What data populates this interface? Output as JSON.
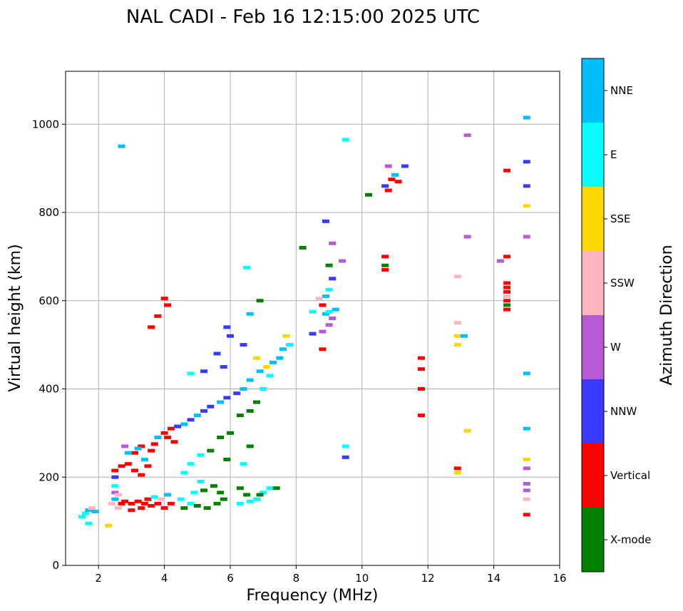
{
  "chart_data": {
    "type": "scatter",
    "title": "NAL CADI - Feb 16 12:15:00 2025 UTC",
    "xlabel": "Frequency (MHz)",
    "ylabel": "Virtual height (km)",
    "xlim": [
      1,
      16
    ],
    "ylim": [
      0,
      1120
    ],
    "xticks": [
      2,
      4,
      6,
      8,
      10,
      12,
      14,
      16
    ],
    "yticks": [
      0,
      200,
      400,
      600,
      800,
      1000
    ],
    "grid": true,
    "colorbar": {
      "label": "Azimuth Direction",
      "categories": [
        {
          "name": "X-mode",
          "color": "#008000"
        },
        {
          "name": "Vertical",
          "color": "#ff0000"
        },
        {
          "name": "NNW",
          "color": "#3a3aff"
        },
        {
          "name": "W",
          "color": "#b65ad6"
        },
        {
          "name": "SSW",
          "color": "#ffb6c1"
        },
        {
          "name": "SSE",
          "color": "#ffd700"
        },
        {
          "name": "E",
          "color": "#00ffff"
        },
        {
          "name": "NNE",
          "color": "#00bfff"
        }
      ]
    },
    "points": [
      [
        1.6,
        118,
        "E"
      ],
      [
        1.7,
        125,
        "NNE"
      ],
      [
        1.8,
        130,
        "SSW"
      ],
      [
        1.9,
        122,
        "NNE"
      ],
      [
        1.5,
        110,
        "E"
      ],
      [
        1.7,
        95,
        "E"
      ],
      [
        2.3,
        90,
        "SSE"
      ],
      [
        2.4,
        140,
        "SSW"
      ],
      [
        2.5,
        150,
        "NNE"
      ],
      [
        2.5,
        165,
        "W"
      ],
      [
        2.6,
        130,
        "SSW"
      ],
      [
        2.5,
        180,
        "E"
      ],
      [
        2.6,
        160,
        "SSW"
      ],
      [
        2.5,
        200,
        "NNW"
      ],
      [
        2.7,
        140,
        "Vertical"
      ],
      [
        2.8,
        145,
        "Vertical"
      ],
      [
        3.0,
        140,
        "Vertical"
      ],
      [
        3.2,
        145,
        "Vertical"
      ],
      [
        3.4,
        140,
        "Vertical"
      ],
      [
        3.5,
        150,
        "Vertical"
      ],
      [
        3.6,
        135,
        "Vertical"
      ],
      [
        3.8,
        140,
        "Vertical"
      ],
      [
        4.0,
        130,
        "Vertical"
      ],
      [
        4.2,
        140,
        "Vertical"
      ],
      [
        3.0,
        125,
        "Vertical"
      ],
      [
        3.3,
        130,
        "Vertical"
      ],
      [
        3.9,
        150,
        "SSW"
      ],
      [
        4.1,
        160,
        "NNE"
      ],
      [
        3.7,
        155,
        "E"
      ],
      [
        4.5,
        150,
        "E"
      ],
      [
        4.8,
        140,
        "E"
      ],
      [
        5.0,
        135,
        "X-mode"
      ],
      [
        5.3,
        130,
        "X-mode"
      ],
      [
        5.6,
        140,
        "X-mode"
      ],
      [
        5.8,
        150,
        "X-mode"
      ],
      [
        4.6,
        130,
        "X-mode"
      ],
      [
        5.2,
        170,
        "X-mode"
      ],
      [
        5.5,
        180,
        "X-mode"
      ],
      [
        5.1,
        190,
        "E"
      ],
      [
        4.9,
        165,
        "E"
      ],
      [
        5.7,
        165,
        "X-mode"
      ],
      [
        6.3,
        140,
        "E"
      ],
      [
        6.6,
        145,
        "E"
      ],
      [
        6.8,
        150,
        "E"
      ],
      [
        7.0,
        165,
        "E"
      ],
      [
        7.2,
        175,
        "E"
      ],
      [
        6.5,
        160,
        "X-mode"
      ],
      [
        6.9,
        160,
        "X-mode"
      ],
      [
        7.4,
        175,
        "X-mode"
      ],
      [
        6.3,
        175,
        "X-mode"
      ],
      [
        2.5,
        215,
        "Vertical"
      ],
      [
        2.7,
        225,
        "Vertical"
      ],
      [
        2.9,
        230,
        "Vertical"
      ],
      [
        3.1,
        215,
        "Vertical"
      ],
      [
        3.3,
        205,
        "Vertical"
      ],
      [
        3.5,
        225,
        "Vertical"
      ],
      [
        3.1,
        255,
        "Vertical"
      ],
      [
        3.3,
        270,
        "Vertical"
      ],
      [
        3.7,
        275,
        "Vertical"
      ],
      [
        3.6,
        260,
        "Vertical"
      ],
      [
        2.9,
        255,
        "NNE"
      ],
      [
        3.2,
        265,
        "NNE"
      ],
      [
        2.8,
        270,
        "W"
      ],
      [
        3.4,
        240,
        "NNE"
      ],
      [
        3.8,
        290,
        "NNE"
      ],
      [
        4.0,
        300,
        "Vertical"
      ],
      [
        4.2,
        310,
        "Vertical"
      ],
      [
        4.4,
        315,
        "NNW"
      ],
      [
        4.6,
        320,
        "NNE"
      ],
      [
        4.8,
        330,
        "NNW"
      ],
      [
        5.0,
        340,
        "NNE"
      ],
      [
        5.2,
        350,
        "NNW"
      ],
      [
        5.4,
        360,
        "NNW"
      ],
      [
        5.7,
        370,
        "NNE"
      ],
      [
        5.9,
        380,
        "NNW"
      ],
      [
        4.1,
        290,
        "Vertical"
      ],
      [
        4.3,
        280,
        "Vertical"
      ],
      [
        6.2,
        390,
        "NNW"
      ],
      [
        6.4,
        400,
        "NNE"
      ],
      [
        6.6,
        420,
        "NNE"
      ],
      [
        6.9,
        440,
        "NNE"
      ],
      [
        7.1,
        450,
        "SSE"
      ],
      [
        7.3,
        460,
        "NNE"
      ],
      [
        7.5,
        470,
        "NNE"
      ],
      [
        7.6,
        490,
        "NNE"
      ],
      [
        7.8,
        500,
        "E"
      ],
      [
        7.7,
        520,
        "SSE"
      ],
      [
        6.8,
        470,
        "SSE"
      ],
      [
        7.2,
        430,
        "E"
      ],
      [
        7.0,
        400,
        "E"
      ],
      [
        5.8,
        450,
        "NNW"
      ],
      [
        5.6,
        480,
        "NNW"
      ],
      [
        5.2,
        440,
        "NNW"
      ],
      [
        4.8,
        435,
        "E"
      ],
      [
        6.0,
        520,
        "NNW"
      ],
      [
        6.4,
        500,
        "NNW"
      ],
      [
        5.9,
        540,
        "NNW"
      ],
      [
        6.6,
        570,
        "NNE"
      ],
      [
        6.9,
        600,
        "X-mode"
      ],
      [
        6.5,
        675,
        "E"
      ],
      [
        4.8,
        230,
        "E"
      ],
      [
        5.1,
        250,
        "E"
      ],
      [
        5.4,
        260,
        "X-mode"
      ],
      [
        5.7,
        290,
        "X-mode"
      ],
      [
        6.0,
        300,
        "X-mode"
      ],
      [
        6.3,
        340,
        "X-mode"
      ],
      [
        6.6,
        350,
        "X-mode"
      ],
      [
        6.8,
        370,
        "X-mode"
      ],
      [
        6.4,
        230,
        "E"
      ],
      [
        4.6,
        210,
        "E"
      ],
      [
        6.6,
        270,
        "X-mode"
      ],
      [
        5.9,
        240,
        "X-mode"
      ],
      [
        3.6,
        540,
        "Vertical"
      ],
      [
        3.8,
        565,
        "Vertical"
      ],
      [
        4.0,
        605,
        "Vertical"
      ],
      [
        4.1,
        590,
        "Vertical"
      ],
      [
        2.7,
        950,
        "NNE"
      ],
      [
        8.5,
        525,
        "NNW"
      ],
      [
        8.8,
        530,
        "W"
      ],
      [
        9.0,
        545,
        "W"
      ],
      [
        9.1,
        560,
        "W"
      ],
      [
        8.9,
        570,
        "NNE"
      ],
      [
        9.0,
        575,
        "E"
      ],
      [
        9.2,
        580,
        "NNE"
      ],
      [
        8.5,
        575,
        "E"
      ],
      [
        8.8,
        590,
        "Vertical"
      ],
      [
        8.9,
        610,
        "NNE"
      ],
      [
        9.0,
        625,
        "E"
      ],
      [
        9.1,
        650,
        "NNW"
      ],
      [
        9.0,
        680,
        "X-mode"
      ],
      [
        9.1,
        730,
        "W"
      ],
      [
        8.9,
        780,
        "NNW"
      ],
      [
        8.8,
        490,
        "Vertical"
      ],
      [
        8.7,
        605,
        "SSW"
      ],
      [
        9.4,
        690,
        "W"
      ],
      [
        8.2,
        720,
        "X-mode"
      ],
      [
        9.5,
        965,
        "E"
      ],
      [
        9.5,
        270,
        "E"
      ],
      [
        9.5,
        245,
        "NNW"
      ],
      [
        10.2,
        840,
        "X-mode"
      ],
      [
        10.7,
        860,
        "NNW"
      ],
      [
        10.9,
        875,
        "Vertical"
      ],
      [
        11.0,
        885,
        "NNE"
      ],
      [
        11.1,
        870,
        "Vertical"
      ],
      [
        10.8,
        905,
        "W"
      ],
      [
        11.3,
        905,
        "NNW"
      ],
      [
        10.8,
        850,
        "Vertical"
      ],
      [
        10.7,
        700,
        "Vertical"
      ],
      [
        10.7,
        680,
        "X-mode"
      ],
      [
        10.7,
        670,
        "Vertical"
      ],
      [
        11.8,
        470,
        "Vertical"
      ],
      [
        11.8,
        445,
        "Vertical"
      ],
      [
        11.8,
        400,
        "Vertical"
      ],
      [
        11.8,
        340,
        "Vertical"
      ],
      [
        12.9,
        500,
        "SSE"
      ],
      [
        12.9,
        520,
        "SSE"
      ],
      [
        13.1,
        520,
        "NNE"
      ],
      [
        12.9,
        550,
        "SSW"
      ],
      [
        12.9,
        655,
        "SSW"
      ],
      [
        13.2,
        745,
        "W"
      ],
      [
        13.2,
        975,
        "W"
      ],
      [
        13.2,
        305,
        "SSE"
      ],
      [
        12.9,
        220,
        "Vertical"
      ],
      [
        12.9,
        210,
        "SSE"
      ],
      [
        14.4,
        580,
        "Vertical"
      ],
      [
        14.4,
        590,
        "X-mode"
      ],
      [
        14.4,
        600,
        "Vertical"
      ],
      [
        14.4,
        610,
        "SSW"
      ],
      [
        14.4,
        620,
        "Vertical"
      ],
      [
        14.4,
        630,
        "Vertical"
      ],
      [
        14.4,
        640,
        "Vertical"
      ],
      [
        14.4,
        700,
        "Vertical"
      ],
      [
        14.2,
        690,
        "W"
      ],
      [
        14.4,
        895,
        "Vertical"
      ],
      [
        15.0,
        1015,
        "NNE"
      ],
      [
        15.0,
        915,
        "NNW"
      ],
      [
        15.0,
        860,
        "NNW"
      ],
      [
        15.0,
        815,
        "SSE"
      ],
      [
        15.0,
        745,
        "W"
      ],
      [
        15.0,
        435,
        "NNE"
      ],
      [
        15.0,
        310,
        "NNE"
      ],
      [
        15.0,
        240,
        "SSE"
      ],
      [
        15.0,
        220,
        "W"
      ],
      [
        15.0,
        185,
        "W"
      ],
      [
        15.0,
        170,
        "W"
      ],
      [
        15.0,
        150,
        "SSW"
      ],
      [
        15.0,
        115,
        "Vertical"
      ]
    ]
  }
}
